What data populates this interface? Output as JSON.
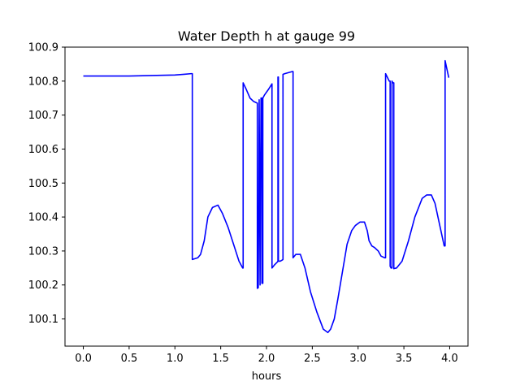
{
  "chart_data": {
    "type": "line",
    "title": "Water Depth h at gauge 99",
    "xlabel": "hours",
    "ylabel": "",
    "xlim": [
      -0.2,
      4.2
    ],
    "ylim": [
      100.02,
      100.9
    ],
    "xticks": [
      0.0,
      0.5,
      1.0,
      1.5,
      2.0,
      2.5,
      3.0,
      3.5,
      4.0
    ],
    "xtick_labels": [
      "0.0",
      "0.5",
      "1.0",
      "1.5",
      "2.0",
      "2.5",
      "3.0",
      "3.5",
      "4.0"
    ],
    "yticks": [
      100.1,
      100.2,
      100.3,
      100.4,
      100.5,
      100.6,
      100.7,
      100.8,
      100.9
    ],
    "ytick_labels": [
      "100.1",
      "100.2",
      "100.3",
      "100.4",
      "100.5",
      "100.6",
      "100.7",
      "100.8",
      "100.9"
    ],
    "grid": false,
    "legend": "none",
    "series": [
      {
        "color": "#0000ff",
        "x": [
          0.0,
          0.5,
          1.0,
          1.1,
          1.18,
          1.19,
          1.19,
          1.25,
          1.28,
          1.32,
          1.36,
          1.41,
          1.47,
          1.52,
          1.58,
          1.64,
          1.7,
          1.74,
          1.745,
          1.745,
          1.78,
          1.82,
          1.86,
          1.9,
          1.9,
          1.91,
          1.92,
          1.92,
          1.93,
          1.93,
          1.94,
          1.95,
          1.95,
          1.96,
          1.96,
          1.98,
          2.02,
          2.06,
          2.06,
          2.09,
          2.12,
          2.125,
          2.125,
          2.13,
          2.13,
          2.15,
          2.17,
          2.18,
          2.18,
          2.2,
          2.28,
          2.29,
          2.29,
          2.32,
          2.37,
          2.42,
          2.48,
          2.55,
          2.62,
          2.67,
          2.7,
          2.74,
          2.78,
          2.83,
          2.88,
          2.93,
          2.97,
          3.02,
          3.07,
          3.1,
          3.12,
          3.15,
          3.18,
          3.22,
          3.25,
          3.29,
          3.3,
          3.3,
          3.34,
          3.35,
          3.35,
          3.36,
          3.37,
          3.37,
          3.38,
          3.39,
          3.39,
          3.42,
          3.48,
          3.55,
          3.62,
          3.7,
          3.75,
          3.8,
          3.84,
          3.88,
          3.92,
          3.94,
          3.95,
          3.95,
          3.99
        ],
        "y": [
          100.815,
          100.815,
          100.818,
          100.82,
          100.822,
          100.822,
          100.275,
          100.28,
          100.29,
          100.33,
          100.4,
          100.428,
          100.435,
          100.41,
          100.37,
          100.32,
          100.27,
          100.25,
          100.25,
          100.795,
          100.775,
          100.75,
          100.74,
          100.735,
          100.19,
          100.192,
          100.745,
          100.745,
          100.2,
          100.205,
          100.75,
          100.75,
          100.205,
          100.205,
          100.75,
          100.76,
          100.775,
          100.792,
          100.25,
          100.26,
          100.268,
          100.27,
          100.812,
          100.812,
          100.27,
          100.27,
          100.273,
          100.275,
          100.82,
          100.822,
          100.828,
          100.828,
          100.28,
          100.29,
          100.29,
          100.25,
          100.18,
          100.12,
          100.07,
          100.06,
          100.07,
          100.1,
          100.16,
          100.24,
          100.32,
          100.36,
          100.375,
          100.385,
          100.385,
          100.36,
          100.33,
          100.315,
          100.31,
          100.3,
          100.285,
          100.28,
          100.28,
          100.822,
          100.8,
          100.8,
          100.255,
          100.25,
          100.25,
          100.8,
          100.795,
          100.795,
          100.248,
          100.25,
          100.27,
          100.33,
          100.4,
          100.455,
          100.465,
          100.465,
          100.44,
          100.39,
          100.34,
          100.315,
          100.315,
          100.86,
          100.81
        ]
      }
    ]
  }
}
